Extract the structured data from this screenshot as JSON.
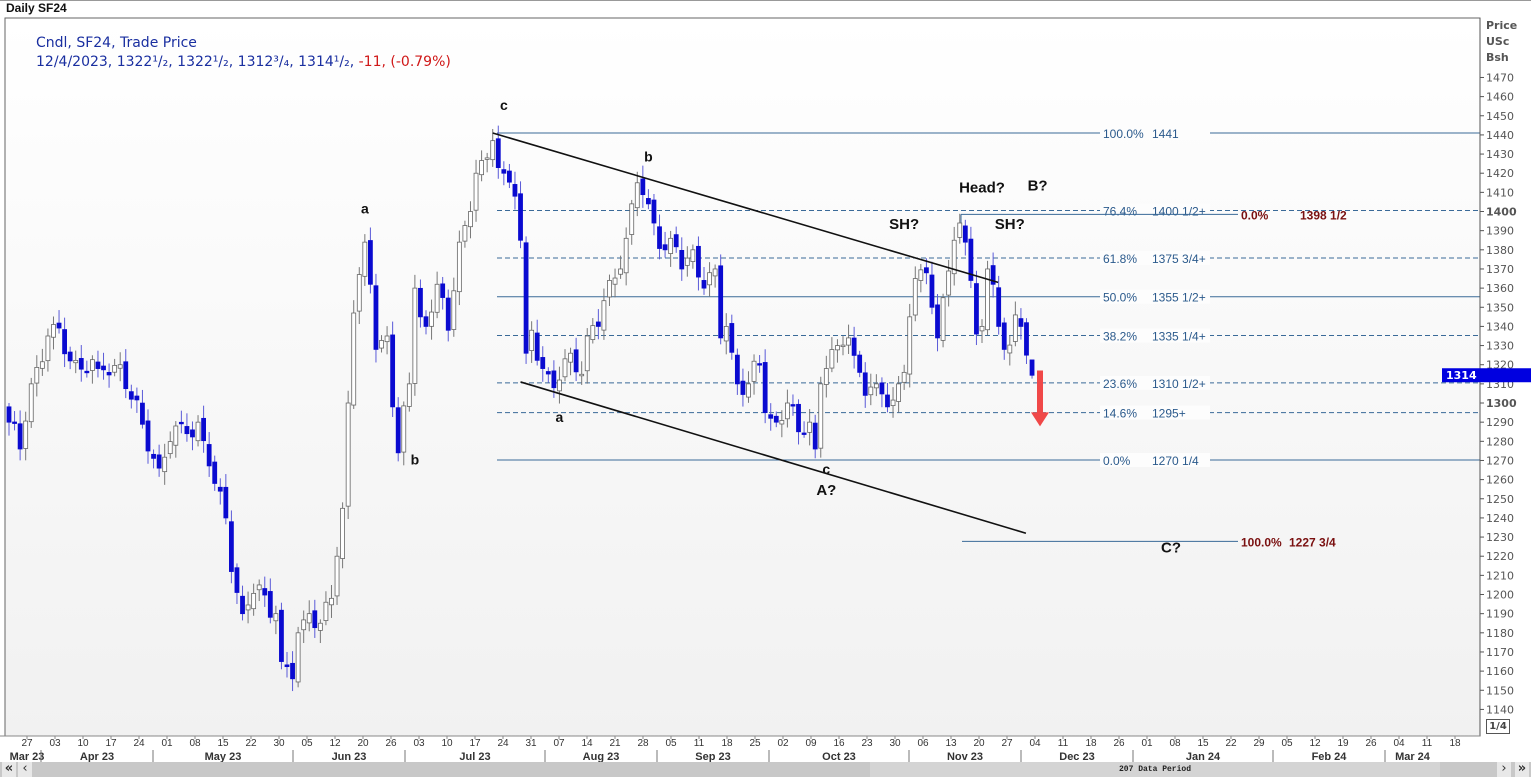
{
  "window": {
    "title": "Daily SF24",
    "page_indicator": "1/4"
  },
  "legend": {
    "line1": "Cndl, SF24, Trade Price",
    "date": "12/4/2023,",
    "open": "1322¹/₂,",
    "high": "1322¹/₂,",
    "low": "1312³/₄,",
    "close": "1314¹/₂,",
    "change": "-11,",
    "change_pct": "(-0.79%)"
  },
  "axis": {
    "title_lines": [
      "Price",
      "USc",
      "Bsh"
    ],
    "last_price": "1314"
  },
  "scrollbar": {
    "label": "207 Data Period"
  },
  "colors": {
    "down": "#0a0ad0",
    "up": "#ffffff",
    "fib": "#2b5a8c",
    "fib2": "#7a1010",
    "arrow": "#f04848",
    "price_marker": "#0000e0"
  },
  "chart_data": {
    "type": "candlestick",
    "title": "Daily SF24",
    "ylabel": "Price USc Bsh",
    "ylim": [
      1135,
      1478
    ],
    "yticks": [
      1140,
      1150,
      1160,
      1170,
      1180,
      1190,
      1200,
      1210,
      1220,
      1230,
      1240,
      1250,
      1260,
      1270,
      1280,
      1290,
      1300,
      1310,
      1320,
      1330,
      1340,
      1350,
      1360,
      1370,
      1380,
      1390,
      1400,
      1410,
      1420,
      1430,
      1440,
      1450,
      1460,
      1470
    ],
    "x_week_labels": [
      "27",
      "03",
      "10",
      "17",
      "24",
      "01",
      "08",
      "15",
      "22",
      "30",
      "05",
      "12",
      "20",
      "26",
      "03",
      "10",
      "17",
      "24",
      "31",
      "07",
      "14",
      "21",
      "28",
      "05",
      "11",
      "18",
      "25",
      "02",
      "09",
      "16",
      "23",
      "30",
      "06",
      "13",
      "20",
      "27",
      "04",
      "11",
      "18",
      "26",
      "01",
      "08",
      "15",
      "22",
      "29",
      "05",
      "12",
      "19",
      "26",
      "04",
      "11",
      "18"
    ],
    "x_month_labels": [
      "Mar 23",
      "Apr 23",
      "May 23",
      "Jun 23",
      "Jul 23",
      "Aug 23",
      "Sep 23",
      "Oct 23",
      "Nov 23",
      "Dec 23",
      "Jan 24",
      "Feb 24",
      "Mar 24"
    ],
    "close_waypoints_by_trading_day": [
      [
        0,
        1290
      ],
      [
        2,
        1276
      ],
      [
        4,
        1310
      ],
      [
        7,
        1335
      ],
      [
        8,
        1341
      ],
      [
        11,
        1322
      ],
      [
        16,
        1318
      ],
      [
        20,
        1320
      ],
      [
        22,
        1302
      ],
      [
        27,
        1266
      ],
      [
        30,
        1288
      ],
      [
        32,
        1284
      ],
      [
        34,
        1290
      ],
      [
        37,
        1258
      ],
      [
        39,
        1240
      ],
      [
        40,
        1212
      ],
      [
        42,
        1190
      ],
      [
        45,
        1205
      ],
      [
        48,
        1190
      ],
      [
        49,
        1165
      ],
      [
        51,
        1156
      ],
      [
        52,
        1180
      ],
      [
        54,
        1190
      ],
      [
        56,
        1185
      ],
      [
        58,
        1198
      ],
      [
        59,
        1220
      ],
      [
        60,
        1245
      ],
      [
        61,
        1300
      ],
      [
        62,
        1347
      ],
      [
        64,
        1384
      ],
      [
        65,
        1362
      ],
      [
        66,
        1328
      ],
      [
        68,
        1335
      ],
      [
        69,
        1298
      ],
      [
        70,
        1274
      ],
      [
        72,
        1310
      ],
      [
        73,
        1360
      ],
      [
        74,
        1345
      ],
      [
        75,
        1340
      ],
      [
        77,
        1362
      ],
      [
        79,
        1338
      ],
      [
        81,
        1384
      ],
      [
        83,
        1400
      ],
      [
        84,
        1420
      ],
      [
        86,
        1428
      ],
      [
        87,
        1437
      ],
      [
        89,
        1420
      ],
      [
        91,
        1408
      ],
      [
        92,
        1385
      ],
      [
        93,
        1326
      ],
      [
        94,
        1338
      ],
      [
        96,
        1318
      ],
      [
        98,
        1308
      ],
      [
        99,
        1312
      ],
      [
        101,
        1326
      ],
      [
        103,
        1315
      ],
      [
        104,
        1335
      ],
      [
        106,
        1340
      ],
      [
        108,
        1364
      ],
      [
        110,
        1370
      ],
      [
        111,
        1386
      ],
      [
        112,
        1404
      ],
      [
        113,
        1415
      ],
      [
        115,
        1404
      ],
      [
        116,
        1394
      ],
      [
        118,
        1380
      ],
      [
        119,
        1386
      ],
      [
        121,
        1370
      ],
      [
        123,
        1380
      ],
      [
        125,
        1360
      ],
      [
        127,
        1370
      ],
      [
        128,
        1334
      ],
      [
        129,
        1340
      ],
      [
        131,
        1310
      ],
      [
        133,
        1310
      ],
      [
        135,
        1320
      ],
      [
        136,
        1295
      ],
      [
        138,
        1290
      ],
      [
        140,
        1300
      ],
      [
        142,
        1285
      ],
      [
        144,
        1290
      ],
      [
        145,
        1276
      ],
      [
        146,
        1310
      ],
      [
        147,
        1318
      ],
      [
        149,
        1330
      ],
      [
        151,
        1334
      ],
      [
        153,
        1316
      ],
      [
        154,
        1304
      ],
      [
        156,
        1310
      ],
      [
        158,
        1298
      ],
      [
        160,
        1310
      ],
      [
        161,
        1316
      ],
      [
        162,
        1345
      ],
      [
        163,
        1365
      ],
      [
        165,
        1368
      ],
      [
        166,
        1350
      ],
      [
        167,
        1334
      ],
      [
        168,
        1355
      ],
      [
        170,
        1385
      ],
      [
        171,
        1394
      ],
      [
        172,
        1384
      ],
      [
        173,
        1364
      ],
      [
        174,
        1336
      ],
      [
        175,
        1340
      ],
      [
        176,
        1370
      ],
      [
        177,
        1362
      ],
      [
        178,
        1340
      ],
      [
        179,
        1328
      ],
      [
        181,
        1346
      ],
      [
        182,
        1340
      ],
      [
        183,
        1325
      ],
      [
        184,
        1314.5
      ]
    ],
    "last_candle": {
      "date": "12/4/2023",
      "open": 1322.5,
      "high": 1322.5,
      "low": 1312.75,
      "close": 1314.5
    },
    "fib_retracement_1": [
      {
        "pct": "100.0%",
        "price": 1441,
        "label": "1441",
        "style": "solid"
      },
      {
        "pct": "76.4%",
        "price": 1400.5,
        "label": "1400 1/2+",
        "style": "dashed"
      },
      {
        "pct": "61.8%",
        "price": 1375.75,
        "label": "1375 3/4+",
        "style": "dashed"
      },
      {
        "pct": "50.0%",
        "price": 1355.5,
        "label": "1355 1/2+",
        "style": "solid"
      },
      {
        "pct": "38.2%",
        "price": 1335.25,
        "label": "1335 1/4+",
        "style": "dashed"
      },
      {
        "pct": "23.6%",
        "price": 1310.5,
        "label": "1310 1/2+",
        "style": "dashed"
      },
      {
        "pct": "14.6%",
        "price": 1295,
        "label": "1295+",
        "style": "dashed"
      },
      {
        "pct": "0.0%",
        "price": 1270.25,
        "label": "1270 1/4",
        "style": "solid"
      }
    ],
    "fib_projection": [
      {
        "pct": "0.0%",
        "price": 1398.5,
        "label": "1398 1/2"
      },
      {
        "pct": "100.0%",
        "price": 1227.75,
        "label": "1227 3/4"
      }
    ],
    "trendlines": [
      {
        "name": "upper-channel",
        "from": [
          87,
          1441
        ],
        "to": [
          177,
          1363
        ]
      },
      {
        "name": "lower-channel",
        "from": [
          92,
          1311
        ],
        "to": [
          182,
          1232
        ]
      }
    ],
    "annotations": [
      {
        "text": "c",
        "day": 89,
        "price": 1453
      },
      {
        "text": "a",
        "day": 64,
        "price": 1399
      },
      {
        "text": "b",
        "day": 73,
        "price": 1268
      },
      {
        "text": "b",
        "day": 115,
        "price": 1426
      },
      {
        "text": "a",
        "day": 99,
        "price": 1290
      },
      {
        "text": "c",
        "day": 147,
        "price": 1263
      },
      {
        "text": "A?",
        "day": 147,
        "price": 1252
      },
      {
        "text": "Head?",
        "day": 175,
        "price": 1410
      },
      {
        "text": "B?",
        "day": 185,
        "price": 1411
      },
      {
        "text": "SH?",
        "day": 161,
        "price": 1391
      },
      {
        "text": "SH?",
        "day": 180,
        "price": 1391
      },
      {
        "text": "C?",
        "day": 209,
        "price": 1222
      }
    ],
    "forecast_arrow": {
      "from_price": 1317,
      "to_price": 1292,
      "direction": "down"
    }
  }
}
